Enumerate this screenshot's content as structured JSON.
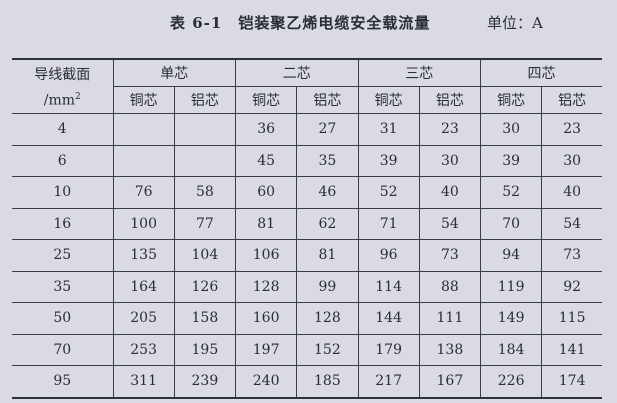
{
  "title": {
    "number": "表 6-1",
    "text": "铠装聚乙烯电缆安全载流量",
    "unit": "单位：A"
  },
  "header": {
    "section_label_line1": "导线截面",
    "section_label_line2": "/mm",
    "section_label_sup": "2",
    "groups": [
      "单芯",
      "二芯",
      "三芯",
      "四芯"
    ],
    "sub": [
      "铜芯",
      "铝芯",
      "铜芯",
      "铝芯",
      "铜芯",
      "铝芯",
      "铜芯",
      "铝芯"
    ]
  },
  "rows": [
    [
      "4",
      "",
      "",
      "36",
      "27",
      "31",
      "23",
      "30",
      "23"
    ],
    [
      "6",
      "",
      "",
      "45",
      "35",
      "39",
      "30",
      "39",
      "30"
    ],
    [
      "10",
      "76",
      "58",
      "60",
      "46",
      "52",
      "40",
      "52",
      "40"
    ],
    [
      "16",
      "100",
      "77",
      "81",
      "62",
      "71",
      "54",
      "70",
      "54"
    ],
    [
      "25",
      "135",
      "104",
      "106",
      "81",
      "96",
      "73",
      "94",
      "73"
    ],
    [
      "35",
      "164",
      "126",
      "128",
      "99",
      "114",
      "88",
      "119",
      "92"
    ],
    [
      "50",
      "205",
      "158",
      "160",
      "128",
      "144",
      "111",
      "149",
      "115"
    ],
    [
      "70",
      "253",
      "195",
      "197",
      "152",
      "179",
      "138",
      "184",
      "141"
    ],
    [
      "95",
      "311",
      "239",
      "240",
      "185",
      "217",
      "167",
      "226",
      "174"
    ]
  ]
}
